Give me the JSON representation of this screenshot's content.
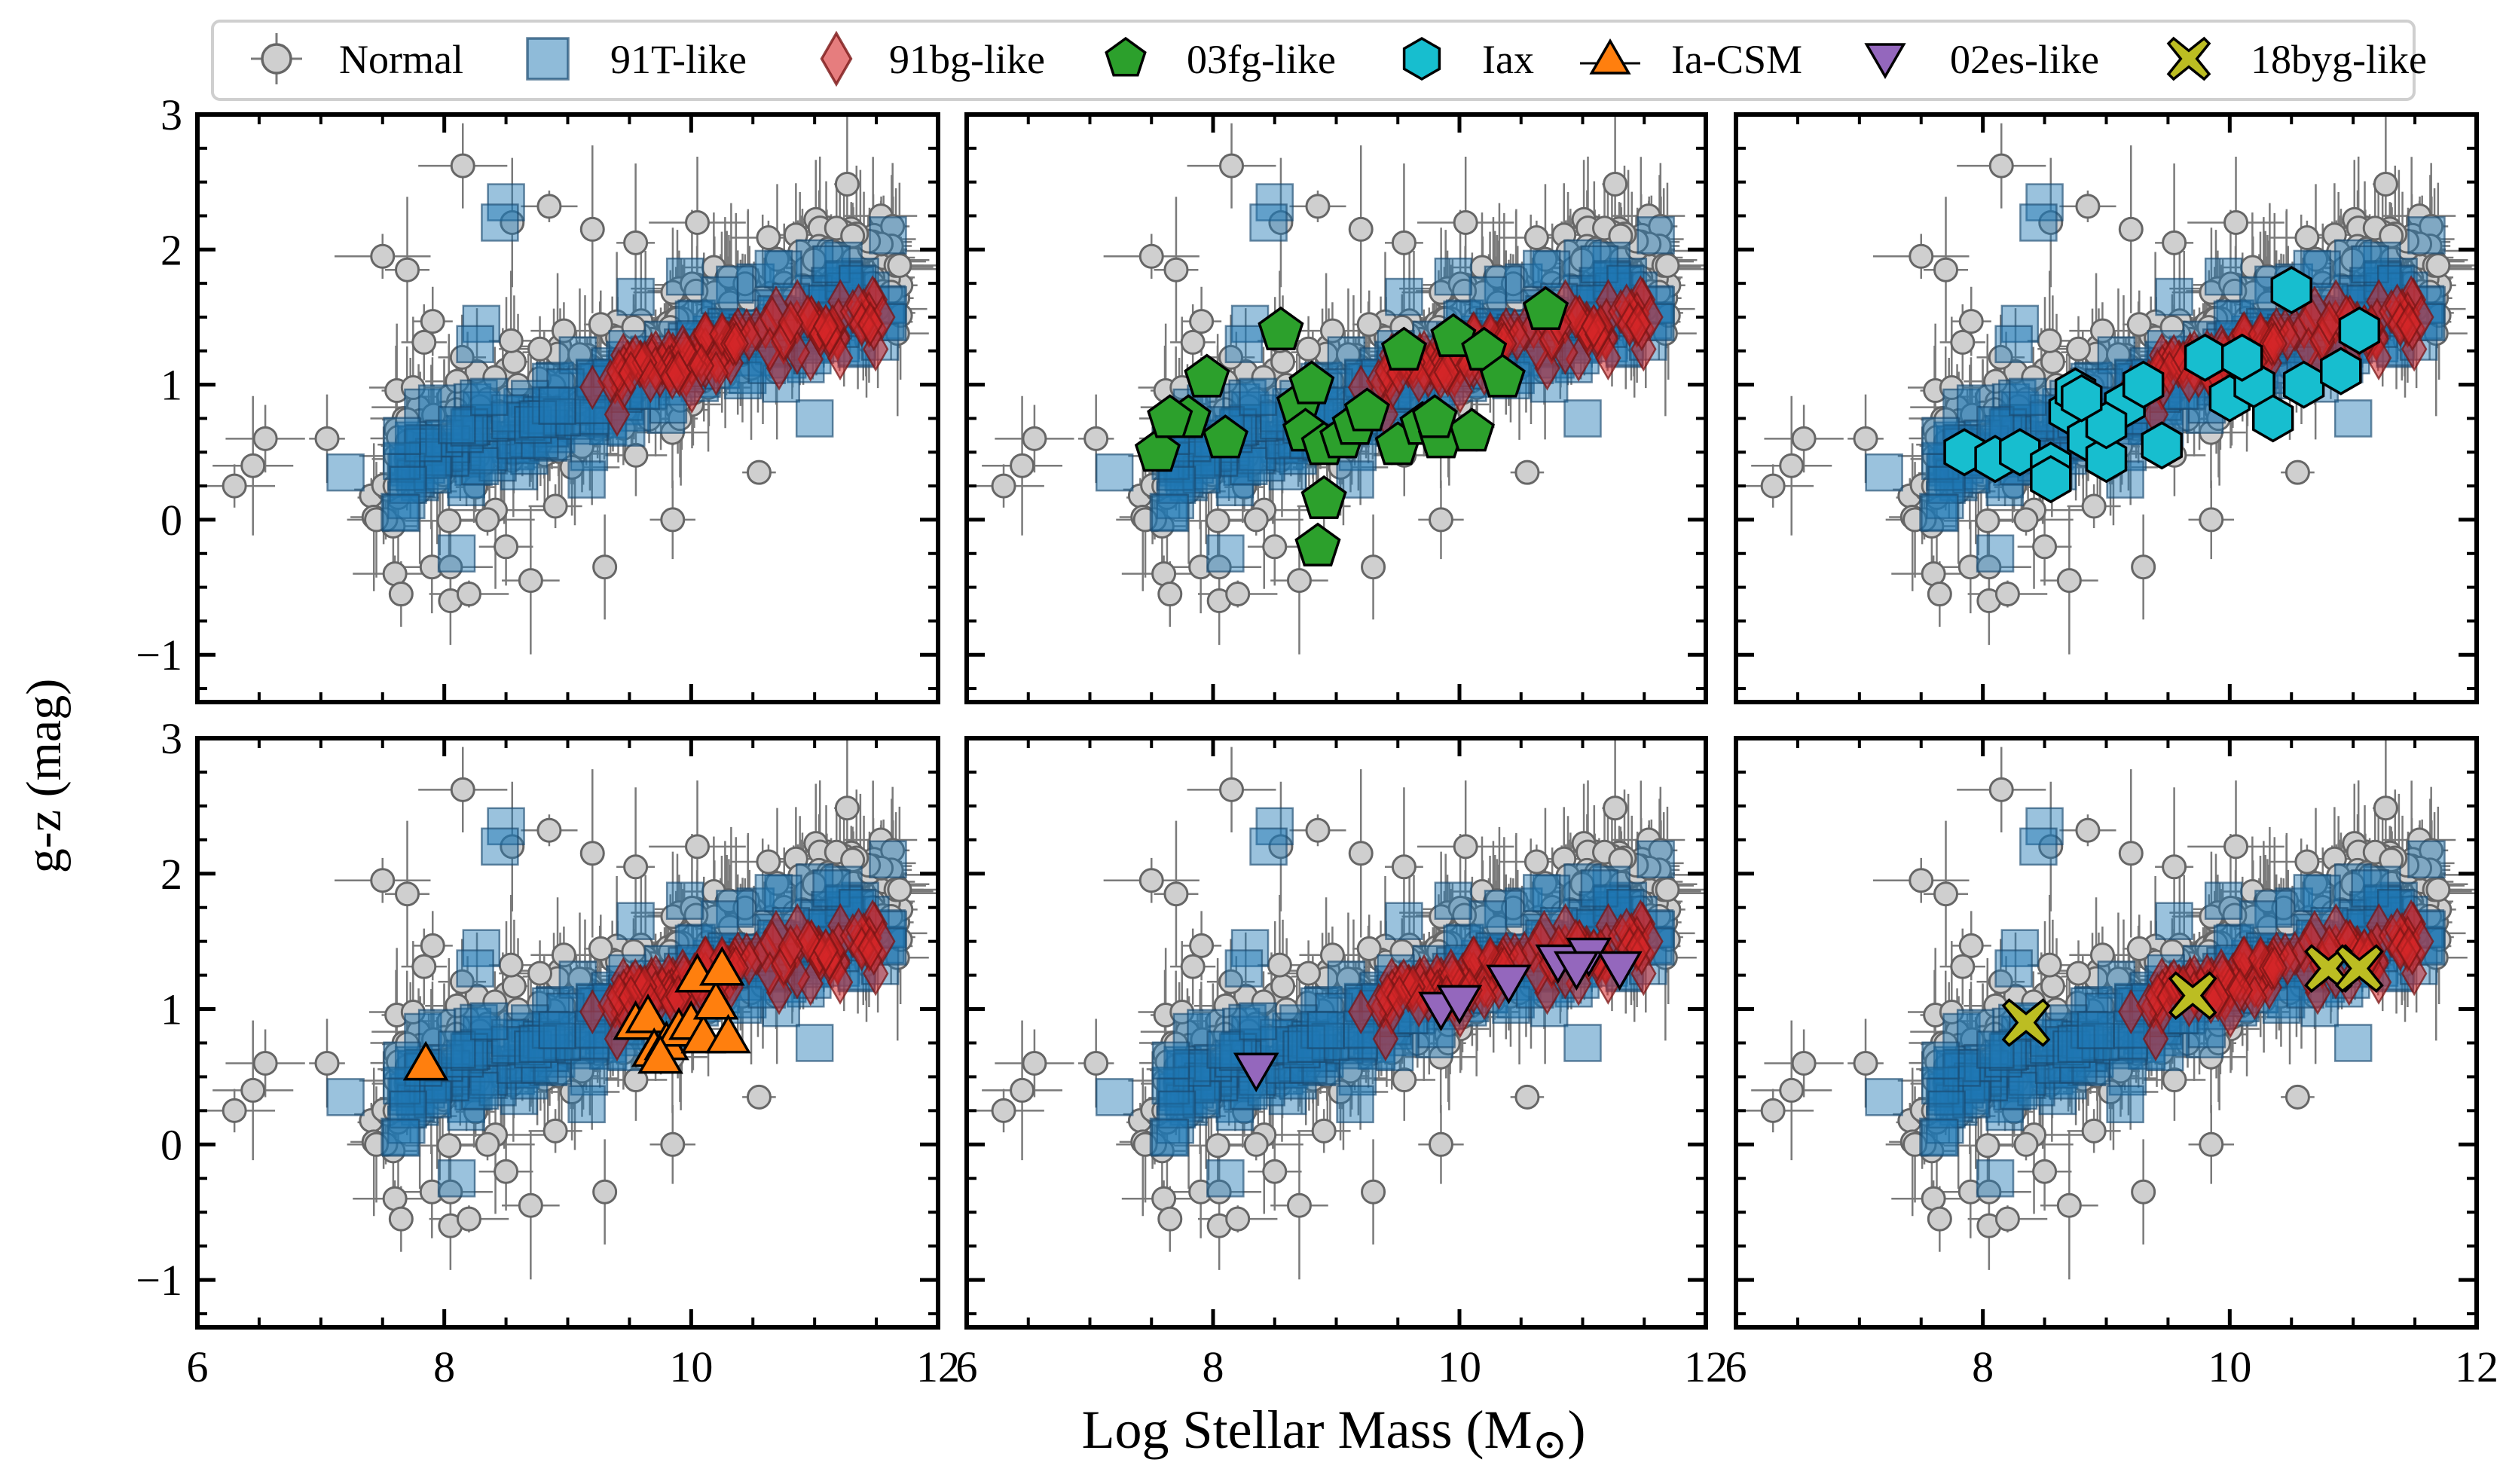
{
  "figure": {
    "ylabel": "g-z (mag)",
    "xlabel": "Log Stellar Mass (M",
    "xlabel_symbol": "⊙",
    "xlabel_close": ")",
    "background": "#ffffff"
  },
  "legend": {
    "entries": [
      {
        "label": "Normal",
        "marker": "circle",
        "color": "#cfcfcf"
      },
      {
        "label": "91T-like",
        "marker": "square",
        "color": "#1f77b4"
      },
      {
        "label": "91bg-like",
        "marker": "diamond",
        "color": "#d62728"
      },
      {
        "label": "03fg-like",
        "marker": "pentagon",
        "color": "#2ca02c"
      },
      {
        "label": "Iax",
        "marker": "hexagon",
        "color": "#17becf"
      },
      {
        "label": "Ia-CSM",
        "marker": "triangle-up",
        "color": "#ff7f0e"
      },
      {
        "label": "02es-like",
        "marker": "triangle-down",
        "color": "#9467bd"
      },
      {
        "label": "18byg-like",
        "marker": "x-filled",
        "color": "#bcbd22"
      }
    ]
  },
  "chart_data": {
    "type": "scatter",
    "xlim": [
      6,
      12
    ],
    "ylim": [
      -1.35,
      3
    ],
    "xticks": [
      6,
      8,
      10,
      12
    ],
    "yticks": [
      -1,
      0,
      1,
      2,
      3
    ],
    "xtick_labels": [
      "6",
      "8",
      "10",
      "12"
    ],
    "ytick_labels": [
      "−1",
      "0",
      "1",
      "2",
      "3"
    ],
    "background_series": {
      "normal": {
        "name": "Normal",
        "color": "#cfcfcf",
        "edge": "#666666",
        "n": 420,
        "seed": 11,
        "outliers": [
          [
            8.15,
            2.62
          ],
          [
            8.55,
            2.2
          ],
          [
            8.85,
            2.32
          ],
          [
            9.2,
            2.15
          ],
          [
            9.55,
            2.05
          ],
          [
            10.05,
            2.2
          ],
          [
            7.5,
            1.95
          ],
          [
            7.7,
            1.85
          ],
          [
            6.45,
            0.4
          ],
          [
            6.55,
            0.6
          ],
          [
            6.3,
            0.25
          ],
          [
            7.05,
            0.6
          ],
          [
            7.6,
            -0.4
          ],
          [
            7.65,
            -0.55
          ],
          [
            7.9,
            -0.35
          ],
          [
            8.05,
            -0.6
          ],
          [
            8.2,
            -0.55
          ],
          [
            8.5,
            -0.2
          ],
          [
            8.7,
            -0.45
          ],
          [
            9.3,
            -0.35
          ],
          [
            8.35,
            0.0
          ],
          [
            8.9,
            0.1
          ],
          [
            9.85,
            0.0
          ],
          [
            10.55,
            0.35
          ],
          [
            7.45,
            0.0
          ],
          [
            7.6,
            0.25
          ],
          [
            8.05,
            -0.35
          ]
        ]
      },
      "t91": {
        "name": "91T-like",
        "color": "#1f77b4",
        "n": 230,
        "seed": 23,
        "outliers": [
          [
            8.5,
            2.35
          ],
          [
            8.45,
            2.2
          ],
          [
            8.3,
            1.45
          ],
          [
            8.25,
            1.3
          ],
          [
            9.55,
            1.65
          ],
          [
            9.95,
            1.8
          ],
          [
            7.2,
            0.35
          ],
          [
            7.65,
            0.05
          ],
          [
            8.1,
            -0.25
          ],
          [
            11.0,
            0.75
          ]
        ]
      },
      "bg91": {
        "name": "91bg-like",
        "color": "#d62728",
        "n": 110,
        "seed": 37,
        "outliers": [
          [
            9.2,
            0.98
          ],
          [
            9.4,
            0.78
          ],
          [
            11.55,
            1.5
          ],
          [
            11.45,
            1.45
          ]
        ]
      }
    },
    "panels": [
      {
        "highlight": null
      },
      {
        "highlight": {
          "name": "03fg-like",
          "marker": "pentagon",
          "color": "#2ca02c",
          "points": [
            [
              7.55,
              0.5
            ],
            [
              7.95,
              1.05
            ],
            [
              7.8,
              0.75
            ],
            [
              7.65,
              0.75
            ],
            [
              8.1,
              0.6
            ],
            [
              8.55,
              1.4
            ],
            [
              8.7,
              0.85
            ],
            [
              8.75,
              0.65
            ],
            [
              8.8,
              1.0
            ],
            [
              8.9,
              0.55
            ],
            [
              9.05,
              0.6
            ],
            [
              9.15,
              0.7
            ],
            [
              8.9,
              0.15
            ],
            [
              8.85,
              -0.2
            ],
            [
              9.5,
              0.55
            ],
            [
              9.55,
              1.25
            ],
            [
              9.7,
              0.7
            ],
            [
              9.85,
              0.6
            ],
            [
              9.95,
              1.35
            ],
            [
              10.1,
              0.65
            ],
            [
              10.2,
              1.25
            ],
            [
              10.35,
              1.05
            ],
            [
              10.7,
              1.55
            ],
            [
              9.25,
              0.8
            ],
            [
              9.8,
              0.75
            ]
          ]
        }
      },
      {
        "highlight": {
          "name": "Iax",
          "marker": "hexagon",
          "color": "#17becf",
          "points": [
            [
              7.85,
              0.5
            ],
            [
              8.1,
              0.45
            ],
            [
              8.3,
              0.5
            ],
            [
              8.55,
              0.4
            ],
            [
              8.55,
              0.3
            ],
            [
              8.7,
              0.8
            ],
            [
              8.75,
              0.95
            ],
            [
              8.85,
              0.6
            ],
            [
              9.0,
              0.45
            ],
            [
              9.15,
              0.85
            ],
            [
              9.3,
              1.0
            ],
            [
              9.45,
              0.55
            ],
            [
              9.8,
              1.2
            ],
            [
              10.0,
              0.9
            ],
            [
              10.2,
              1.0
            ],
            [
              10.35,
              0.75
            ],
            [
              10.5,
              1.7
            ],
            [
              10.6,
              1.0
            ],
            [
              10.9,
              1.1
            ],
            [
              11.05,
              1.4
            ],
            [
              9.0,
              0.7
            ],
            [
              8.8,
              0.9
            ],
            [
              10.1,
              1.2
            ]
          ]
        }
      },
      {
        "highlight": {
          "name": "Ia-CSM",
          "marker": "triangle-up",
          "color": "#ff7f0e",
          "points": [
            [
              7.85,
              0.6
            ],
            [
              9.55,
              0.9
            ],
            [
              9.65,
              0.95
            ],
            [
              9.7,
              0.7
            ],
            [
              9.8,
              0.75
            ],
            [
              9.9,
              0.85
            ],
            [
              10.0,
              0.9
            ],
            [
              10.05,
              1.25
            ],
            [
              10.1,
              0.8
            ],
            [
              10.2,
              1.05
            ],
            [
              10.25,
              1.3
            ],
            [
              10.3,
              0.8
            ],
            [
              9.75,
              0.65
            ]
          ]
        }
      },
      {
        "highlight": {
          "name": "02es-like",
          "marker": "triangle-down",
          "color": "#9467bd",
          "points": [
            [
              8.35,
              0.55
            ],
            [
              9.85,
              1.0
            ],
            [
              10.0,
              1.05
            ],
            [
              10.4,
              1.2
            ],
            [
              10.8,
              1.35
            ],
            [
              11.05,
              1.4
            ],
            [
              11.3,
              1.3
            ],
            [
              10.95,
              1.3
            ]
          ]
        }
      },
      {
        "highlight": {
          "name": "18byg-like",
          "marker": "x-filled",
          "color": "#bcbd22",
          "points": [
            [
              8.35,
              0.9
            ],
            [
              9.7,
              1.1
            ],
            [
              10.8,
              1.3
            ],
            [
              11.05,
              1.3
            ]
          ]
        }
      }
    ]
  }
}
